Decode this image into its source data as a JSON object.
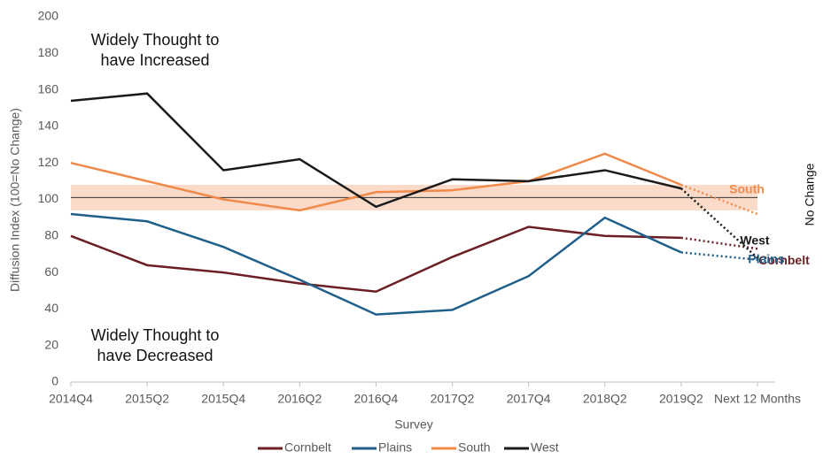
{
  "chart_data": {
    "type": "line",
    "x_label": "Survey",
    "y_label": "Diffusion Index (100=No Change)",
    "categories": [
      "2014Q4",
      "2015Q2",
      "2015Q4",
      "2016Q2",
      "2016Q4",
      "2017Q2",
      "2017Q4",
      "2018Q2",
      "2019Q2",
      "Next 12 Months"
    ],
    "series": [
      {
        "name": "Cornbelt",
        "color": "#6b1f24",
        "values": [
          80,
          64,
          60,
          54,
          49.5,
          68.5,
          85,
          80,
          79,
          73
        ]
      },
      {
        "name": "Plains",
        "color": "#1f5f8b",
        "values": [
          92,
          88,
          74,
          56,
          37,
          39.5,
          58,
          90,
          71,
          67
        ]
      },
      {
        "name": "South",
        "color": "#f08a4b",
        "values": [
          120,
          110,
          100,
          94,
          104,
          105,
          110,
          125,
          108,
          92
        ]
      },
      {
        "name": "West",
        "color": "#1a1a1a",
        "values": [
          154,
          158,
          116,
          122,
          96,
          111,
          110,
          116,
          106,
          68
        ]
      }
    ],
    "ylim": [
      0,
      200
    ],
    "yticks": [
      0,
      20,
      40,
      60,
      80,
      100,
      120,
      140,
      160,
      180,
      200
    ],
    "no_change_band": [
      94,
      108
    ],
    "no_change_line": 101,
    "no_change_label": "No Change",
    "annotations": {
      "increased": [
        "Widely Thought to",
        "have Increased"
      ],
      "decreased": [
        "Widely Thought to",
        "have Decreased"
      ]
    },
    "legend": "bottom"
  }
}
